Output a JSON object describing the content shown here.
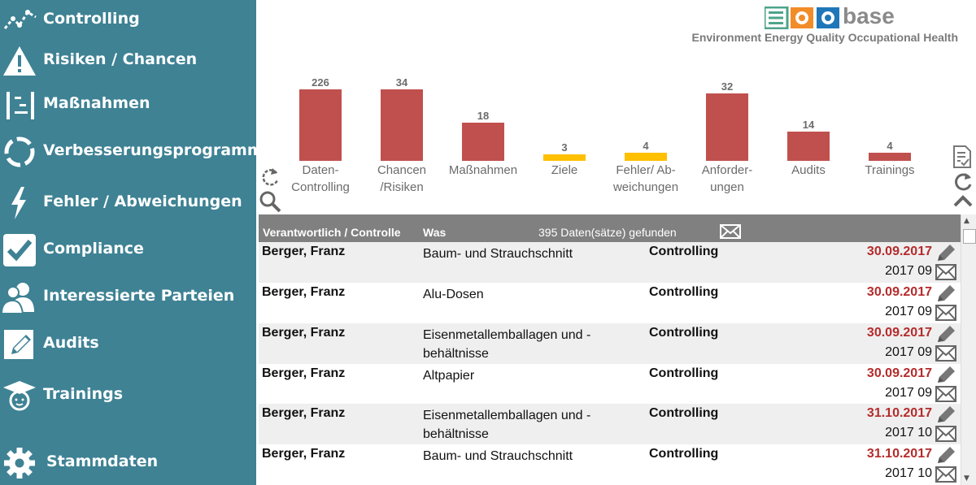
{
  "sidebar": {
    "items": [
      {
        "label": "Controlling",
        "icon": "chart-line-icon"
      },
      {
        "label": "Risiken / Chancen",
        "icon": "warning-icon"
      },
      {
        "label": "Maßnahmen",
        "icon": "tasks-icon"
      },
      {
        "label": "Verbesserungsprogramm",
        "icon": "cycle-icon"
      },
      {
        "label": "Fehler / Abweichungen",
        "icon": "lightning-icon"
      },
      {
        "label": "Compliance",
        "icon": "checkbox-icon"
      },
      {
        "label": "Interessierte Parteien",
        "icon": "users-icon"
      },
      {
        "label": "Audits",
        "icon": "pencil-doc-icon"
      },
      {
        "label": "Trainings",
        "icon": "graduate-icon"
      },
      {
        "label": "Stammdaten",
        "icon": "gear-icon"
      }
    ]
  },
  "header": {
    "logo_text": "base",
    "subtitle": "Environment Energy Quality Occupational Health"
  },
  "colors": {
    "sidebar": "#3e8294",
    "bar_red": "#c0504d",
    "bar_yellow": "#ffc000",
    "date_red": "#b52b2b"
  },
  "chart_data": {
    "type": "bar",
    "categories": [
      "Daten-\nControlling",
      "Chancen\n/Risiken",
      "Maßnahmen",
      "Ziele",
      "Fehler/ Ab-\nweichungen",
      "Anforder-\nungen",
      "Audits",
      "Trainings"
    ],
    "values": [
      226,
      34,
      18,
      3,
      4,
      32,
      14,
      4
    ],
    "colors": [
      "#c0504d",
      "#c0504d",
      "#c0504d",
      "#ffc000",
      "#ffc000",
      "#c0504d",
      "#c0504d",
      "#c0504d"
    ],
    "value_labels": [
      "226",
      "34",
      "18",
      "3",
      "4",
      "32",
      "14",
      "4"
    ],
    "title": "",
    "xlabel": "",
    "ylabel": ""
  },
  "table": {
    "col_responsible": "Verantwortlich / Controlle",
    "col_what": "Was",
    "count_text": "395 Daten(sätze) gefunden",
    "rows": [
      {
        "name": "Berger, Franz",
        "what": "Baum- und Strauchschnitt",
        "type": "Controlling",
        "date": "30.09.2017",
        "period": "2017 09"
      },
      {
        "name": "Berger, Franz",
        "what": "Alu-Dosen",
        "type": "Controlling",
        "date": "30.09.2017",
        "period": "2017 09"
      },
      {
        "name": "Berger, Franz",
        "what": "Eisenmetallemballagen und - behältnisse",
        "type": "Controlling",
        "date": "30.09.2017",
        "period": "2017 09"
      },
      {
        "name": "Berger, Franz",
        "what": "Altpapier",
        "type": "Controlling",
        "date": "30.09.2017",
        "period": "2017 09"
      },
      {
        "name": "Berger, Franz",
        "what": "Eisenmetallemballagen und - behältnisse",
        "type": "Controlling",
        "date": "31.10.2017",
        "period": "2017 10"
      },
      {
        "name": "Berger, Franz",
        "what": "Baum- und Strauchschnitt",
        "type": "Controlling",
        "date": "31.10.2017",
        "period": "2017 10"
      }
    ]
  }
}
